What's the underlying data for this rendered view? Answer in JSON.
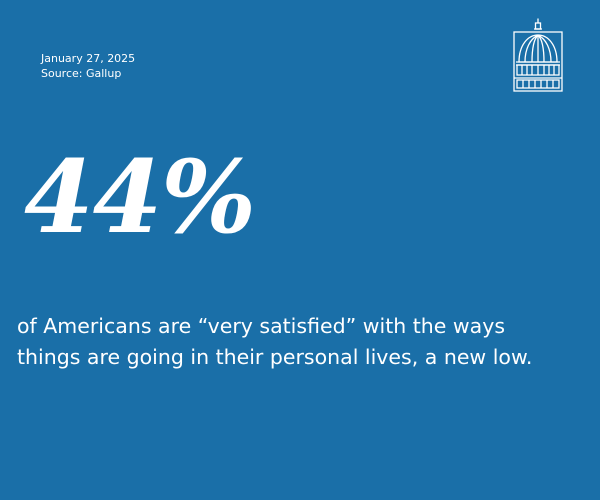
{
  "header": {
    "date": "January 27, 2025",
    "source": "Source: Gallup"
  },
  "logo": {
    "icon": "capitol-dome-icon"
  },
  "stat": {
    "value": "44%"
  },
  "description": "of Americans are “very satisfied” with the ways things are going in their personal lives, a new low.",
  "colors": {
    "background": "#1a6fa8",
    "text": "#ffffff"
  }
}
